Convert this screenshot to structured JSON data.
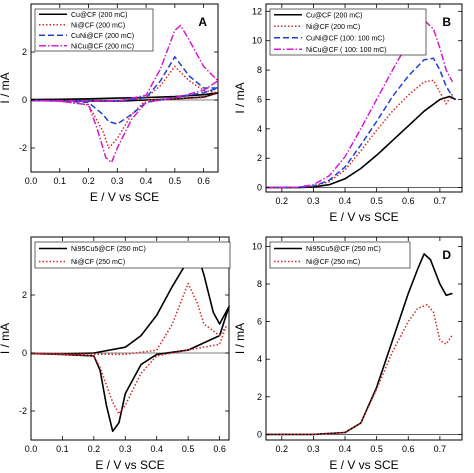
{
  "chart_data": [
    {
      "panel": "A",
      "type": "line",
      "xlabel": "E / V vs SCE",
      "ylabel": "I / mA",
      "xlim": [
        0.0,
        0.65
      ],
      "ylim": [
        -3,
        4
      ],
      "xticks": [
        0.0,
        0.1,
        0.2,
        0.3,
        0.4,
        0.5,
        0.6
      ],
      "xtick_labels": [
        "0.0",
        "0.1",
        "0.2",
        "0.3",
        "0.4",
        "0.5",
        "0.6"
      ],
      "yticks": [
        -2,
        0,
        2
      ],
      "ytick_labels": [
        "-2",
        "0",
        "2"
      ],
      "legend_position": "top-left",
      "series": [
        {
          "name": "Cu@CF (200 mC)",
          "color": "#000000",
          "dash": "solid",
          "x": [
            0.0,
            0.1,
            0.2,
            0.3,
            0.4,
            0.5,
            0.6,
            0.65,
            0.6,
            0.5,
            0.4,
            0.3,
            0.2,
            0.1,
            0.0
          ],
          "y": [
            -0.02,
            -0.03,
            -0.04,
            -0.05,
            0.0,
            0.05,
            0.12,
            0.3,
            0.22,
            0.14,
            0.1,
            0.08,
            0.05,
            0.03,
            0.02
          ]
        },
        {
          "name": "Ni@CF (200 mC)",
          "color": "#d62728",
          "dash": "dotted",
          "x": [
            0.0,
            0.1,
            0.2,
            0.3,
            0.4,
            0.45,
            0.5,
            0.55,
            0.6,
            0.65,
            0.6,
            0.5,
            0.4,
            0.35,
            0.3,
            0.27,
            0.25,
            0.2,
            0.1,
            0.0
          ],
          "y": [
            -0.02,
            -0.04,
            -0.05,
            -0.05,
            0.1,
            0.6,
            1.4,
            0.8,
            0.4,
            0.3,
            0.1,
            0.05,
            0.0,
            -0.6,
            -1.6,
            -2.0,
            -1.3,
            -0.2,
            -0.05,
            -0.02
          ]
        },
        {
          "name": "CuNi@CF (200 mC)",
          "color": "#1f3fd6",
          "dash": "dashed",
          "x": [
            0.0,
            0.1,
            0.2,
            0.3,
            0.4,
            0.45,
            0.5,
            0.55,
            0.6,
            0.65,
            0.6,
            0.5,
            0.4,
            0.35,
            0.3,
            0.27,
            0.25,
            0.2,
            0.1,
            0.0
          ],
          "y": [
            -0.02,
            -0.03,
            -0.04,
            -0.05,
            0.1,
            0.8,
            1.8,
            1.0,
            0.5,
            0.5,
            0.3,
            0.1,
            -0.1,
            -0.6,
            -1.0,
            -0.9,
            -0.6,
            -0.1,
            -0.04,
            -0.02
          ]
        },
        {
          "name": "NiCu@CF (200 mC)",
          "color": "#d21bd2",
          "dash": "dashdot",
          "x": [
            0.0,
            0.1,
            0.2,
            0.3,
            0.4,
            0.45,
            0.5,
            0.52,
            0.55,
            0.6,
            0.65,
            0.6,
            0.5,
            0.4,
            0.35,
            0.3,
            0.28,
            0.26,
            0.23,
            0.2,
            0.1,
            0.0
          ],
          "y": [
            -0.02,
            -0.03,
            -0.04,
            -0.05,
            0.2,
            1.3,
            2.9,
            3.1,
            2.5,
            1.4,
            0.8,
            0.4,
            0.1,
            -0.1,
            -0.8,
            -2.0,
            -2.6,
            -2.4,
            -1.2,
            -0.2,
            -0.05,
            -0.02
          ]
        }
      ]
    },
    {
      "panel": "B",
      "type": "line",
      "xlabel": "E / V vs SCE",
      "ylabel": "I / mA",
      "xlim": [
        0.15,
        0.77
      ],
      "ylim": [
        -0.3,
        12.5
      ],
      "xticks": [
        0.2,
        0.3,
        0.4,
        0.5,
        0.6,
        0.7
      ],
      "xtick_labels": [
        "0.2",
        "0.3",
        "0.4",
        "0.5",
        "0.6",
        "0.7"
      ],
      "yticks": [
        0,
        2,
        4,
        6,
        8,
        10,
        12
      ],
      "ytick_labels": [
        "0",
        "2",
        "4",
        "6",
        "8",
        "10",
        "12"
      ],
      "legend_position": "top-left",
      "series": [
        {
          "name": "Cu@CF (200 mC)",
          "color": "#000000",
          "dash": "solid",
          "x": [
            0.15,
            0.25,
            0.3,
            0.35,
            0.4,
            0.45,
            0.5,
            0.55,
            0.6,
            0.65,
            0.7,
            0.73,
            0.75
          ],
          "y": [
            0.0,
            0.0,
            0.05,
            0.2,
            0.6,
            1.3,
            2.2,
            3.2,
            4.2,
            5.2,
            6.0,
            6.2,
            6.0
          ]
        },
        {
          "name": "Ni@CF (200 mC)",
          "color": "#d62728",
          "dash": "dotted",
          "x": [
            0.15,
            0.25,
            0.3,
            0.35,
            0.4,
            0.45,
            0.5,
            0.55,
            0.6,
            0.65,
            0.68,
            0.7,
            0.72,
            0.74
          ],
          "y": [
            0.0,
            0.02,
            0.1,
            0.4,
            1.2,
            2.5,
            3.9,
            5.2,
            6.3,
            7.2,
            7.3,
            6.5,
            5.7,
            6.4
          ]
        },
        {
          "name": "CuNi@CF (100: 100 mC)",
          "color": "#1f3fd6",
          "dash": "dashed",
          "x": [
            0.15,
            0.25,
            0.3,
            0.35,
            0.4,
            0.45,
            0.5,
            0.55,
            0.6,
            0.65,
            0.68,
            0.7,
            0.72,
            0.74
          ],
          "y": [
            0.0,
            0.02,
            0.1,
            0.5,
            1.4,
            2.9,
            4.5,
            6.2,
            7.6,
            8.7,
            8.8,
            8.0,
            6.9,
            6.2
          ]
        },
        {
          "name": "NiCu@CF ( 100: 100 mC)",
          "color": "#d21bd2",
          "dash": "dashdot",
          "x": [
            0.15,
            0.25,
            0.3,
            0.35,
            0.4,
            0.45,
            0.5,
            0.55,
            0.6,
            0.63,
            0.65,
            0.68,
            0.7,
            0.72,
            0.74
          ],
          "y": [
            0.0,
            0.03,
            0.2,
            0.8,
            2.1,
            4.0,
            6.0,
            8.0,
            9.9,
            11.0,
            11.4,
            10.8,
            9.5,
            8.0,
            7.2
          ]
        }
      ]
    },
    {
      "panel": "C",
      "type": "line",
      "xlabel": "E / V vs SCE",
      "ylabel": "I / mA",
      "xlim": [
        0.0,
        0.63
      ],
      "ylim": [
        -3,
        4
      ],
      "xticks": [
        0.0,
        0.1,
        0.2,
        0.3,
        0.4,
        0.5,
        0.6
      ],
      "xtick_labels": [
        "0.0",
        "0.1",
        "0.2",
        "0.3",
        "0.4",
        "0.5",
        "0.6"
      ],
      "yticks": [
        -2,
        0,
        2
      ],
      "ytick_labels": [
        "-2",
        "0",
        "2"
      ],
      "legend_position": "top-left",
      "series": [
        {
          "name": "Ni95Cu5@CF (250 mC)",
          "color": "#000000",
          "dash": "solid",
          "x": [
            0.0,
            0.1,
            0.2,
            0.3,
            0.35,
            0.4,
            0.45,
            0.5,
            0.53,
            0.55,
            0.58,
            0.6,
            0.63,
            0.6,
            0.5,
            0.4,
            0.35,
            0.3,
            0.28,
            0.26,
            0.24,
            0.22,
            0.2,
            0.1,
            0.0
          ],
          "y": [
            -0.02,
            -0.03,
            0.0,
            0.2,
            0.6,
            1.3,
            2.3,
            3.2,
            3.4,
            2.7,
            1.4,
            1.0,
            1.6,
            0.6,
            0.1,
            -0.05,
            -0.4,
            -1.4,
            -2.4,
            -2.7,
            -1.8,
            -0.6,
            -0.1,
            -0.05,
            -0.02
          ]
        },
        {
          "name": "Ni@CF (250 mC)",
          "color": "#d62728",
          "dash": "dotted",
          "x": [
            0.0,
            0.1,
            0.2,
            0.3,
            0.4,
            0.45,
            0.5,
            0.53,
            0.55,
            0.6,
            0.62,
            0.6,
            0.5,
            0.4,
            0.35,
            0.3,
            0.28,
            0.26,
            0.22,
            0.2,
            0.1,
            0.0
          ],
          "y": [
            -0.02,
            -0.03,
            -0.04,
            -0.05,
            0.1,
            1.0,
            2.4,
            1.7,
            1.0,
            0.6,
            0.9,
            0.3,
            0.1,
            -0.1,
            -0.7,
            -1.8,
            -2.1,
            -1.7,
            -0.5,
            -0.1,
            -0.05,
            -0.02
          ]
        }
      ]
    },
    {
      "panel": "D",
      "type": "line",
      "xlabel": "E / V vs SCE",
      "ylabel": "I / mA",
      "xlim": [
        0.15,
        0.77
      ],
      "ylim": [
        -0.3,
        10.5
      ],
      "xticks": [
        0.2,
        0.3,
        0.4,
        0.5,
        0.6,
        0.7
      ],
      "xtick_labels": [
        "0.2",
        "0.3",
        "0.4",
        "0.5",
        "0.6",
        "0.7"
      ],
      "yticks": [
        0,
        2,
        4,
        6,
        8,
        10
      ],
      "ytick_labels": [
        "0",
        "2",
        "4",
        "6",
        "8",
        "10"
      ],
      "legend_position": "top-left",
      "series": [
        {
          "name": "Ni95Cu5@CF (250 mC)",
          "color": "#000000",
          "dash": "solid",
          "x": [
            0.15,
            0.3,
            0.4,
            0.45,
            0.5,
            0.55,
            0.6,
            0.63,
            0.65,
            0.67,
            0.7,
            0.72,
            0.74
          ],
          "y": [
            0.0,
            0.0,
            0.1,
            0.6,
            2.5,
            5.0,
            7.5,
            8.8,
            9.6,
            9.3,
            8.0,
            7.4,
            7.5
          ]
        },
        {
          "name": "Ni@CF (250 mC)",
          "color": "#d62728",
          "dash": "dotted",
          "x": [
            0.15,
            0.3,
            0.4,
            0.45,
            0.5,
            0.55,
            0.6,
            0.63,
            0.66,
            0.68,
            0.7,
            0.72,
            0.74
          ],
          "y": [
            0.0,
            0.0,
            0.1,
            0.6,
            2.4,
            4.4,
            6.0,
            6.7,
            6.9,
            6.5,
            5.0,
            4.8,
            5.3
          ]
        }
      ]
    }
  ]
}
